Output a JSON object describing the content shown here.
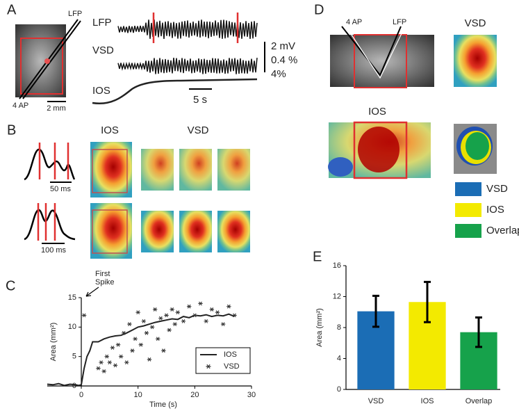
{
  "panel_labels": [
    "A",
    "B",
    "C",
    "D",
    "E"
  ],
  "panel_a": {
    "electrodes": [
      "LFP",
      "4 AP"
    ],
    "scale_bar": "2 mm",
    "traces": [
      "LFP",
      "VSD",
      "IOS"
    ],
    "amplitude_scales": [
      "2 mV",
      "0.4 %",
      "4%"
    ],
    "time_scale": "5 s"
  },
  "panel_b": {
    "headers": [
      "IOS",
      "VSD"
    ],
    "time_scales": [
      "50 ms",
      "100 ms"
    ]
  },
  "panel_d": {
    "electrodes": [
      "4 AP",
      "LFP"
    ],
    "titles": [
      "VSD",
      "IOS"
    ],
    "legend": [
      {
        "name": "VSD",
        "color": "#1b6db5"
      },
      {
        "name": "IOS",
        "color": "#f3ea00"
      },
      {
        "name": "Overlap",
        "color": "#16a24b"
      }
    ]
  },
  "chart_data": [
    {
      "type": "line",
      "annotation": [
        "First",
        "Spike"
      ],
      "xlabel": "Time (s)",
      "ylabel": "Area (mm²)",
      "xlim": [
        -6,
        30
      ],
      "ylim": [
        0,
        15
      ],
      "xticks": [
        0,
        10,
        20,
        30
      ],
      "yticks": [
        0,
        5,
        10,
        15
      ],
      "legend": "lower right",
      "series": [
        {
          "name": "IOS",
          "type": "line",
          "color": "#222222",
          "x": [
            -6,
            -5,
            -4,
            -3,
            -2,
            -1,
            -0.5,
            0,
            0.5,
            1,
            1.5,
            2,
            3,
            4,
            5,
            6,
            7,
            8,
            9,
            10,
            11,
            12,
            13,
            14,
            15,
            16,
            17,
            18,
            19,
            20,
            21,
            22,
            23,
            24,
            25,
            26,
            27
          ],
          "values": [
            0.3,
            0.2,
            0.4,
            0.1,
            0.3,
            0.2,
            0.1,
            0.2,
            3,
            5,
            6,
            7.5,
            7.5,
            8,
            8.3,
            8.5,
            8.6,
            9,
            9.5,
            10,
            10.2,
            10.5,
            10.8,
            11,
            11.2,
            11.4,
            11.3,
            11.8,
            11.6,
            12,
            11.9,
            12.1,
            11.8,
            12,
            11.9,
            12.2,
            11.8
          ]
        },
        {
          "name": "VSD",
          "type": "scatter",
          "marker": "asterisk",
          "color": "#333333",
          "x": [
            0.5,
            3,
            3.5,
            4,
            4.5,
            5,
            5.5,
            6,
            6.5,
            7,
            7.5,
            8,
            8.5,
            9,
            9.5,
            10,
            10.5,
            11,
            11.5,
            12,
            12.5,
            13,
            13.5,
            14,
            14.5,
            15,
            15.5,
            16,
            16.5,
            17,
            18,
            19,
            20,
            21,
            22,
            23,
            24,
            25,
            26,
            27
          ],
          "values": [
            12,
            3,
            4,
            2.5,
            5,
            4,
            6.5,
            3.5,
            7,
            5,
            9,
            4,
            10.5,
            6,
            8,
            12.5,
            7,
            11,
            9,
            4.5,
            10,
            13,
            8,
            11.5,
            6,
            12,
            9.5,
            13,
            10.5,
            12.5,
            11,
            13.5,
            12,
            14,
            11,
            13,
            12.5,
            10.5,
            13.5,
            12
          ]
        }
      ]
    },
    {
      "type": "bar",
      "ylabel": "Area (mm²)",
      "categories": [
        "VSD",
        "IOS",
        "Overlap"
      ],
      "values": [
        10.1,
        11.3,
        7.4
      ],
      "errors": [
        2.0,
        2.6,
        1.9
      ],
      "colors": [
        "#1b6db5",
        "#f3ea00",
        "#16a24b"
      ],
      "ylim": [
        0,
        16
      ],
      "yticks": [
        0,
        4,
        8,
        12,
        16
      ]
    }
  ]
}
